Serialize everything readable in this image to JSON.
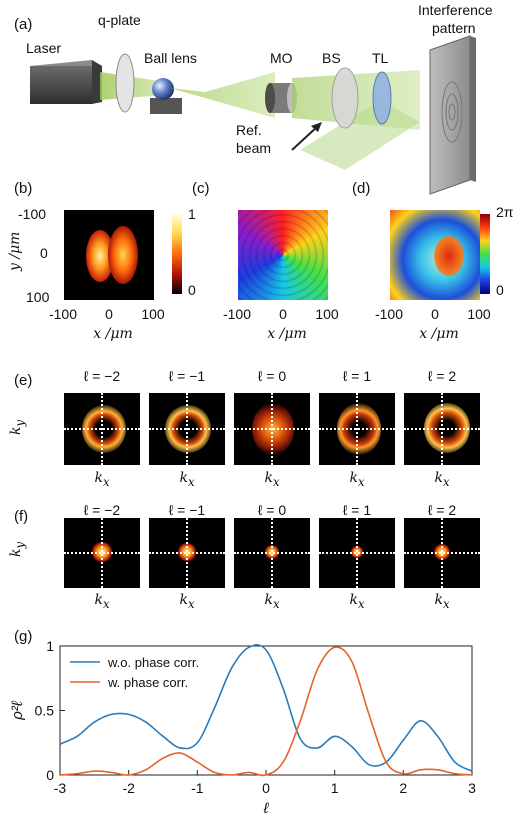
{
  "panel_a": {
    "label": "(a)",
    "laser": "Laser",
    "qplate": "q-plate",
    "ball_lens": "Ball lens",
    "mo": "MO",
    "bs": "BS",
    "tl": "TL",
    "ref_beam_1": "Ref.",
    "ref_beam_2": "beam",
    "interference_1": "Interference",
    "interference_2": "pattern"
  },
  "panel_b": {
    "label": "(b)",
    "ylabel": "y /μm",
    "xlabel": "x /μm",
    "yticks": [
      "-100",
      "0",
      "100"
    ],
    "xticks": [
      "-100",
      "0",
      "100"
    ],
    "cbar_top": "1",
    "cbar_bottom": "0"
  },
  "panel_c": {
    "label": "(c)",
    "xlabel": "x /μm",
    "xticks": [
      "-100",
      "0",
      "100"
    ]
  },
  "panel_d": {
    "label": "(d)",
    "xlabel": "x /μm",
    "xticks": [
      "-100",
      "0",
      "100"
    ],
    "cbar_top": "2π",
    "cbar_bottom": "0"
  },
  "panel_e": {
    "label": "(e)",
    "titles": [
      "ℓ = −2",
      "ℓ = −1",
      "ℓ = 0",
      "ℓ = 1",
      "ℓ = 2"
    ],
    "ylabel": "ky",
    "xlabel": "kx"
  },
  "panel_f": {
    "label": "(f)",
    "titles": [
      "ℓ = −2",
      "ℓ = −1",
      "ℓ = 0",
      "ℓ = 1",
      "ℓ = 2"
    ],
    "ylabel": "ky",
    "xlabel": "kx"
  },
  "panel_g": {
    "label": "(g)",
    "colors": {
      "wo": "#2b7bba",
      "w": "#e5632a"
    }
  },
  "chart_data": {
    "type": "line",
    "xlabel": "ℓ",
    "ylabel": "ρ²ℓ",
    "xlim": [
      -3,
      3
    ],
    "ylim": [
      0,
      1
    ],
    "xticks": [
      "-3",
      "-2",
      "-1",
      "0",
      "1",
      "2",
      "3"
    ],
    "yticks": [
      "0",
      "0.5",
      "1"
    ],
    "legend_position": "top-left",
    "series": [
      {
        "name": "w.o. phase corr.",
        "x": [
          -3,
          -2.75,
          -2.5,
          -2.25,
          -2,
          -1.75,
          -1.5,
          -1.25,
          -1,
          -0.75,
          -0.5,
          -0.25,
          0,
          0.25,
          0.5,
          0.75,
          1,
          1.25,
          1.5,
          1.75,
          2,
          2.25,
          2.5,
          2.75,
          3
        ],
        "y": [
          0.24,
          0.3,
          0.41,
          0.47,
          0.47,
          0.41,
          0.3,
          0.21,
          0.25,
          0.52,
          0.83,
          0.99,
          0.97,
          0.67,
          0.28,
          0.21,
          0.3,
          0.22,
          0.08,
          0.1,
          0.27,
          0.42,
          0.3,
          0.1,
          0.03
        ]
      },
      {
        "name": "w. phase corr.",
        "x": [
          -3,
          -2.75,
          -2.5,
          -2.25,
          -2,
          -1.75,
          -1.5,
          -1.25,
          -1,
          -0.75,
          -0.5,
          -0.25,
          0,
          0.25,
          0.5,
          0.75,
          1,
          1.25,
          1.5,
          1.75,
          2,
          2.25,
          2.5,
          2.75,
          3
        ],
        "y": [
          0.0,
          0.01,
          0.03,
          0.02,
          0.0,
          0.04,
          0.13,
          0.17,
          0.1,
          0.02,
          0.0,
          0.02,
          0.0,
          0.1,
          0.42,
          0.82,
          0.99,
          0.88,
          0.47,
          0.1,
          0.01,
          0.04,
          0.04,
          0.01,
          0.0
        ]
      }
    ]
  }
}
